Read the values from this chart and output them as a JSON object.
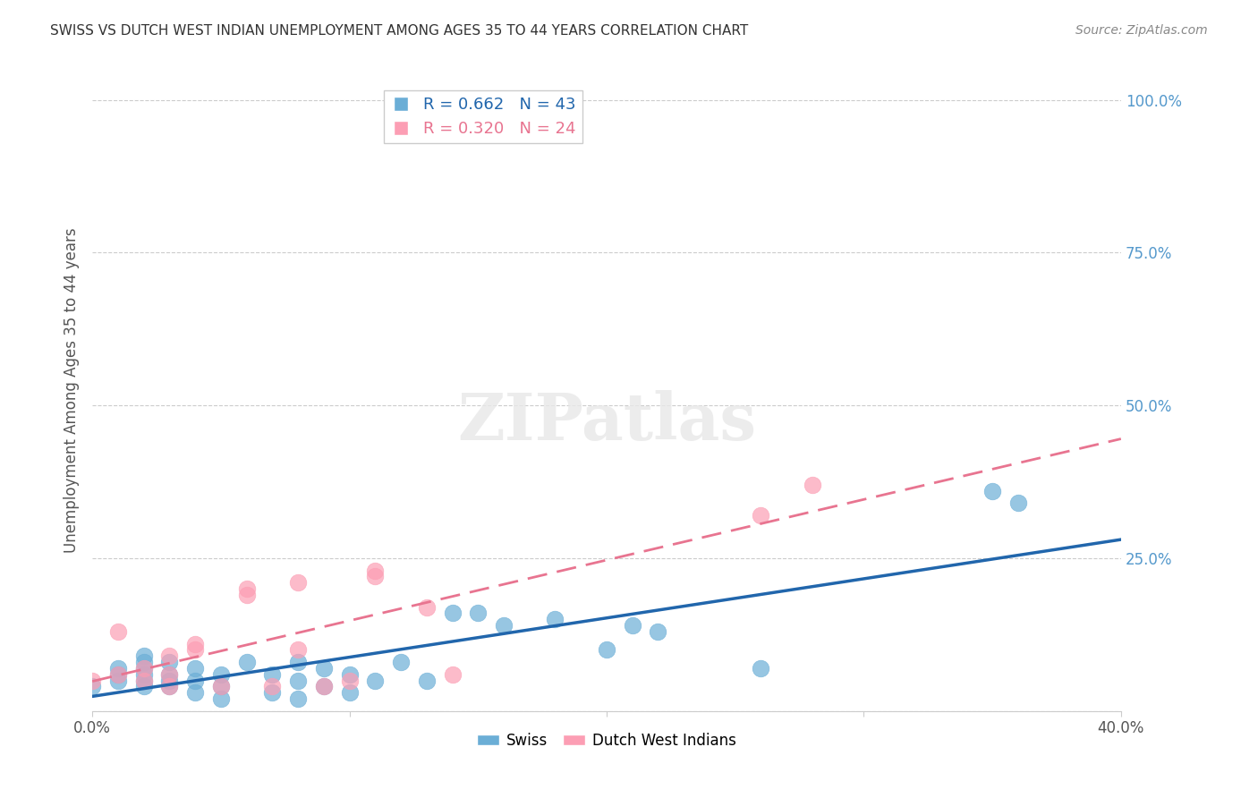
{
  "title": "SWISS VS DUTCH WEST INDIAN UNEMPLOYMENT AMONG AGES 35 TO 44 YEARS CORRELATION CHART",
  "source": "Source: ZipAtlas.com",
  "xlabel": "",
  "ylabel": "Unemployment Among Ages 35 to 44 years",
  "xlim": [
    0.0,
    0.4
  ],
  "ylim": [
    0.0,
    1.05
  ],
  "xticks": [
    0.0,
    0.1,
    0.2,
    0.3,
    0.4
  ],
  "xticklabels": [
    "0.0%",
    "",
    "",
    "",
    "40.0%"
  ],
  "yticks_right": [
    0.0,
    0.25,
    0.5,
    0.75,
    1.0
  ],
  "yticklabels_right": [
    "",
    "25.0%",
    "50.0%",
    "75.0%",
    "100.0%"
  ],
  "swiss_R": 0.662,
  "swiss_N": 43,
  "dwi_R": 0.32,
  "dwi_N": 24,
  "swiss_color": "#6baed6",
  "dwi_color": "#fc9eb4",
  "swiss_line_color": "#2166ac",
  "dwi_line_color": "#e87490",
  "watermark": "ZIPatlas",
  "swiss_x": [
    0.0,
    0.01,
    0.01,
    0.01,
    0.02,
    0.02,
    0.02,
    0.02,
    0.02,
    0.02,
    0.03,
    0.03,
    0.03,
    0.03,
    0.04,
    0.04,
    0.04,
    0.05,
    0.05,
    0.05,
    0.06,
    0.07,
    0.07,
    0.08,
    0.08,
    0.08,
    0.09,
    0.09,
    0.1,
    0.1,
    0.11,
    0.12,
    0.13,
    0.14,
    0.15,
    0.16,
    0.18,
    0.2,
    0.21,
    0.22,
    0.26,
    0.35,
    0.36
  ],
  "swiss_y": [
    0.04,
    0.05,
    0.06,
    0.07,
    0.04,
    0.05,
    0.06,
    0.07,
    0.08,
    0.09,
    0.04,
    0.05,
    0.06,
    0.08,
    0.03,
    0.05,
    0.07,
    0.02,
    0.04,
    0.06,
    0.08,
    0.03,
    0.06,
    0.02,
    0.05,
    0.08,
    0.04,
    0.07,
    0.03,
    0.06,
    0.05,
    0.08,
    0.05,
    0.16,
    0.16,
    0.14,
    0.15,
    0.1,
    0.14,
    0.13,
    0.07,
    0.36,
    0.34
  ],
  "dwi_x": [
    0.0,
    0.01,
    0.01,
    0.02,
    0.02,
    0.03,
    0.03,
    0.03,
    0.04,
    0.04,
    0.05,
    0.06,
    0.06,
    0.07,
    0.08,
    0.08,
    0.09,
    0.1,
    0.11,
    0.11,
    0.13,
    0.14,
    0.26,
    0.28
  ],
  "dwi_y": [
    0.05,
    0.06,
    0.13,
    0.05,
    0.07,
    0.04,
    0.06,
    0.09,
    0.1,
    0.11,
    0.04,
    0.19,
    0.2,
    0.04,
    0.1,
    0.21,
    0.04,
    0.05,
    0.22,
    0.23,
    0.17,
    0.06,
    0.32,
    0.37
  ]
}
